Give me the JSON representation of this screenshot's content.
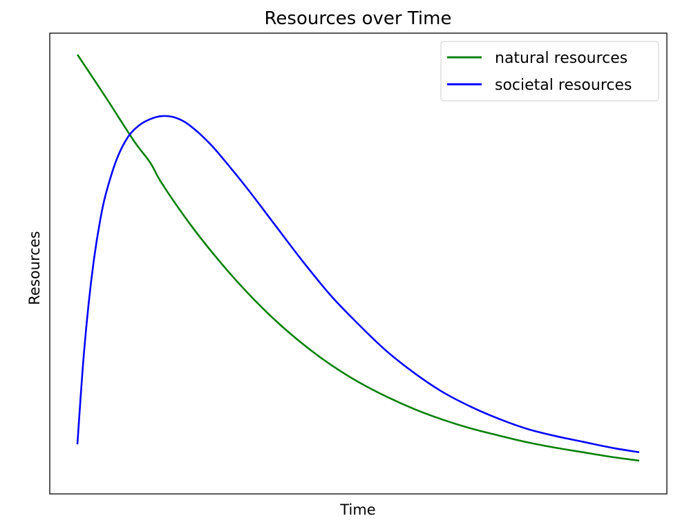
{
  "chart_data": {
    "type": "line",
    "title": "Resources over Time",
    "xlabel": "Time",
    "ylabel": "Resources",
    "x_ticks_shown": false,
    "y_ticks_shown": false,
    "grid": false,
    "legend_position": "top-right",
    "xlim": [
      0,
      100
    ],
    "ylim": [
      0,
      100
    ],
    "series": [
      {
        "name": "natural resources",
        "color": "#008000",
        "x": [
          0,
          5,
          10,
          13,
          15,
          20,
          25,
          30,
          35,
          40,
          45,
          50,
          55,
          60,
          65,
          70,
          75,
          80,
          85,
          90,
          95,
          100
        ],
        "y": [
          100,
          89.9,
          79.5,
          74.1,
          69.3,
          59.6,
          51.1,
          43.5,
          36.8,
          31.0,
          26.0,
          21.8,
          18.3,
          15.3,
          12.8,
          10.7,
          9.0,
          7.4,
          6.1,
          5.0,
          3.9,
          3.0
        ]
      },
      {
        "name": "societal resources",
        "color": "#0000ff",
        "x": [
          0,
          1,
          2,
          3,
          4,
          5,
          7,
          9,
          11,
          13,
          15,
          17,
          19,
          21,
          23,
          25,
          30,
          35,
          40,
          45,
          50,
          55,
          60,
          65,
          70,
          75,
          80,
          85,
          90,
          95,
          100
        ],
        "y": [
          6.9,
          26.0,
          40.5,
          51.6,
          60.0,
          66.4,
          75.0,
          80.3,
          83.1,
          84.6,
          85.3,
          85.1,
          84.0,
          82.0,
          79.5,
          76.6,
          68.4,
          59.6,
          50.8,
          42.6,
          35.6,
          29.2,
          23.9,
          19.4,
          15.9,
          13.0,
          10.6,
          8.9,
          7.5,
          6.1,
          5.0
        ]
      }
    ]
  }
}
